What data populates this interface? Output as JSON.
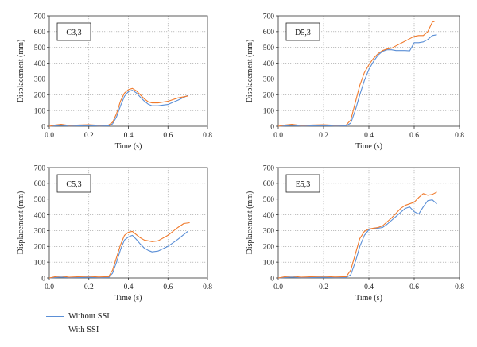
{
  "colors": {
    "without_ssi": "#5b8fd6",
    "with_ssi": "#f07a2c"
  },
  "legend": {
    "without_label": "Without SSI",
    "with_label": "With SSI"
  },
  "chart_data": [
    {
      "type": "line",
      "label": "C3,3",
      "xlabel": "Time (s)",
      "ylabel": "Displacement (mm)",
      "xlim": [
        0,
        0.8
      ],
      "ylim": [
        0,
        700
      ],
      "xticks": [
        "0.0",
        "0.2",
        "0.4",
        "0.6",
        "0.8"
      ],
      "yticks": [
        "0",
        "100",
        "200",
        "300",
        "400",
        "500",
        "600",
        "700"
      ],
      "grid": true,
      "series": [
        {
          "name": "Without SSI",
          "x": [
            0,
            0.03,
            0.06,
            0.1,
            0.15,
            0.2,
            0.25,
            0.3,
            0.32,
            0.34,
            0.36,
            0.38,
            0.4,
            0.42,
            0.44,
            0.46,
            0.48,
            0.5,
            0.52,
            0.55,
            0.6,
            0.65,
            0.7
          ],
          "y": [
            0,
            3,
            5,
            2,
            3,
            4,
            2,
            3,
            15,
            60,
            130,
            190,
            220,
            228,
            212,
            185,
            160,
            140,
            130,
            130,
            138,
            165,
            195
          ]
        },
        {
          "name": "With SSI",
          "x": [
            0,
            0.03,
            0.06,
            0.1,
            0.15,
            0.2,
            0.25,
            0.3,
            0.32,
            0.34,
            0.36,
            0.38,
            0.4,
            0.42,
            0.44,
            0.46,
            0.48,
            0.5,
            0.52,
            0.55,
            0.6,
            0.65,
            0.7
          ],
          "y": [
            0,
            8,
            12,
            5,
            8,
            10,
            6,
            8,
            25,
            80,
            160,
            210,
            232,
            240,
            225,
            200,
            175,
            155,
            148,
            148,
            158,
            180,
            192
          ]
        }
      ]
    },
    {
      "type": "line",
      "label": "D5,3",
      "xlabel": "Time (s)",
      "ylabel": "Displacement (mm)",
      "xlim": [
        0,
        0.8
      ],
      "ylim": [
        0,
        700
      ],
      "xticks": [
        "0.0",
        "0.2",
        "0.4",
        "0.6",
        "0.8"
      ],
      "yticks": [
        "0",
        "100",
        "200",
        "300",
        "400",
        "500",
        "600",
        "700"
      ],
      "grid": true,
      "series": [
        {
          "name": "Without SSI",
          "x": [
            0,
            0.03,
            0.06,
            0.1,
            0.15,
            0.2,
            0.25,
            0.3,
            0.32,
            0.34,
            0.36,
            0.38,
            0.4,
            0.42,
            0.44,
            0.46,
            0.48,
            0.5,
            0.52,
            0.54,
            0.56,
            0.58,
            0.6,
            0.62,
            0.64,
            0.66,
            0.68,
            0.7
          ],
          "y": [
            0,
            3,
            5,
            2,
            3,
            4,
            2,
            3,
            20,
            100,
            200,
            290,
            360,
            410,
            450,
            475,
            485,
            485,
            480,
            480,
            480,
            478,
            530,
            530,
            535,
            550,
            575,
            580
          ]
        },
        {
          "name": "With SSI",
          "x": [
            0,
            0.03,
            0.06,
            0.1,
            0.15,
            0.2,
            0.25,
            0.3,
            0.32,
            0.34,
            0.36,
            0.38,
            0.4,
            0.42,
            0.44,
            0.46,
            0.48,
            0.5,
            0.52,
            0.54,
            0.56,
            0.58,
            0.6,
            0.62,
            0.64,
            0.66,
            0.68,
            0.69
          ],
          "y": [
            0,
            8,
            12,
            5,
            8,
            10,
            6,
            8,
            40,
            150,
            260,
            340,
            390,
            430,
            460,
            480,
            490,
            495,
            510,
            525,
            540,
            555,
            570,
            575,
            575,
            600,
            660,
            665
          ]
        }
      ]
    },
    {
      "type": "line",
      "label": "C5,3",
      "xlabel": "Time (s)",
      "ylabel": "Displacement (mm)",
      "xlim": [
        0,
        0.8
      ],
      "ylim": [
        0,
        700
      ],
      "xticks": [
        "0.0",
        "0.2",
        "0.4",
        "0.6",
        "0.8"
      ],
      "yticks": [
        "0",
        "100",
        "200",
        "300",
        "400",
        "500",
        "600",
        "700"
      ],
      "grid": true,
      "series": [
        {
          "name": "Without SSI",
          "x": [
            0,
            0.03,
            0.06,
            0.1,
            0.15,
            0.2,
            0.25,
            0.3,
            0.32,
            0.34,
            0.36,
            0.38,
            0.4,
            0.42,
            0.44,
            0.46,
            0.48,
            0.5,
            0.52,
            0.55,
            0.6,
            0.65,
            0.7
          ],
          "y": [
            0,
            3,
            5,
            2,
            3,
            4,
            2,
            3,
            30,
            100,
            180,
            240,
            260,
            270,
            245,
            215,
            190,
            175,
            165,
            170,
            200,
            245,
            295
          ]
        },
        {
          "name": "With SSI",
          "x": [
            0,
            0.03,
            0.06,
            0.1,
            0.15,
            0.2,
            0.25,
            0.3,
            0.32,
            0.34,
            0.36,
            0.38,
            0.4,
            0.42,
            0.44,
            0.46,
            0.48,
            0.5,
            0.52,
            0.55,
            0.6,
            0.65,
            0.68,
            0.71
          ],
          "y": [
            0,
            8,
            12,
            5,
            8,
            10,
            6,
            8,
            50,
            130,
            210,
            270,
            290,
            295,
            275,
            255,
            240,
            235,
            230,
            235,
            270,
            320,
            345,
            350
          ]
        }
      ]
    },
    {
      "type": "line",
      "label": "E5,3",
      "xlabel": "Time (s)",
      "ylabel": "Displacement (mm)",
      "xlim": [
        0,
        0.8
      ],
      "ylim": [
        0,
        700
      ],
      "xticks": [
        "0.0",
        "0.2",
        "0.4",
        "0.6",
        "0.8"
      ],
      "yticks": [
        "0",
        "100",
        "200",
        "300",
        "400",
        "500",
        "600",
        "700"
      ],
      "grid": true,
      "series": [
        {
          "name": "Without SSI",
          "x": [
            0,
            0.03,
            0.06,
            0.1,
            0.15,
            0.2,
            0.25,
            0.3,
            0.32,
            0.34,
            0.36,
            0.38,
            0.4,
            0.42,
            0.44,
            0.46,
            0.48,
            0.5,
            0.52,
            0.54,
            0.56,
            0.58,
            0.6,
            0.62,
            0.64,
            0.66,
            0.68,
            0.7
          ],
          "y": [
            0,
            3,
            5,
            2,
            3,
            4,
            2,
            3,
            20,
            100,
            200,
            270,
            305,
            315,
            315,
            320,
            340,
            365,
            390,
            415,
            440,
            450,
            420,
            405,
            450,
            490,
            495,
            470
          ]
        },
        {
          "name": "With SSI",
          "x": [
            0,
            0.03,
            0.06,
            0.1,
            0.15,
            0.2,
            0.25,
            0.3,
            0.32,
            0.34,
            0.36,
            0.38,
            0.4,
            0.42,
            0.44,
            0.46,
            0.48,
            0.5,
            0.52,
            0.54,
            0.56,
            0.58,
            0.6,
            0.62,
            0.64,
            0.66,
            0.68,
            0.7
          ],
          "y": [
            0,
            8,
            12,
            5,
            8,
            10,
            6,
            8,
            50,
            150,
            250,
            295,
            310,
            315,
            320,
            330,
            355,
            380,
            410,
            440,
            460,
            470,
            480,
            510,
            535,
            525,
            530,
            545
          ]
        }
      ]
    }
  ]
}
